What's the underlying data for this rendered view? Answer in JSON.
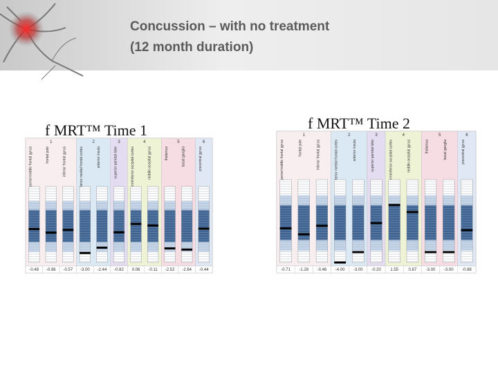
{
  "header": {
    "title_lines": [
      "Concussion – with no treatment",
      "(12 month duration)"
    ]
  },
  "scale": {
    "ylim": [
      -4,
      4
    ]
  },
  "panels": [
    {
      "heading": "f MRT™ Time 1",
      "groups": [
        {
          "label": "1",
          "regions": [
            {
              "name": "superior/middle frontal gyrus",
              "value": {
                "value": -0.48,
                "label": "-0.48"
              }
            },
            {
              "name": "frontal pole",
              "value": {
                "value": -0.86,
                "label": "-0.86"
              }
            },
            {
              "name": "inferior frontal gyrus",
              "value": {
                "value": -0.57,
                "label": "-0.57"
              }
            }
          ]
        },
        {
          "label": "2",
          "regions": [
            {
              "name": "posterior medial frontal cortex",
              "value": {
                "value": -3,
                "label": "-3.00"
              }
            },
            {
              "name": "anterior insula",
              "value": {
                "value": -2.44,
                "label": "-2.44"
              }
            }
          ]
        },
        {
          "label": "3",
          "regions": [
            {
              "name": "superior parietal lobe",
              "value": {
                "value": -0.82,
                "label": "-0.82"
              }
            }
          ]
        },
        {
          "label": "4",
          "regions": [
            {
              "name": "fusiform/inferior occipital cortex",
              "value": {
                "value": 0.06,
                "label": "0.06"
              }
            },
            {
              "name": "middle occipital gyrus",
              "value": {
                "value": -0.11,
                "label": "-0.11"
              }
            }
          ]
        },
        {
          "label": "5",
          "regions": [
            {
              "name": "thalamus",
              "value": {
                "value": -2.52,
                "label": "-2.52"
              }
            },
            {
              "name": "basal ganglia",
              "value": {
                "value": -2.64,
                "label": "-2.64"
              }
            }
          ]
        },
        {
          "label": "6",
          "regions": [
            {
              "name": "precentral gyrus",
              "value": {
                "value": -0.44,
                "label": "-0.44"
              }
            }
          ]
        }
      ]
    },
    {
      "heading": "f MRT™ Time 2",
      "groups": [
        {
          "label": "1",
          "regions": [
            {
              "name": "superior/middle frontal gyrus",
              "value": {
                "value": -0.71,
                "label": "-0.71"
              }
            },
            {
              "name": "frontal pole",
              "value": {
                "value": -1.28,
                "label": "-1.28"
              }
            },
            {
              "name": "inferior frontal gyrus",
              "value": {
                "value": -0.46,
                "label": "-0.46"
              }
            }
          ]
        },
        {
          "label": "2",
          "regions": [
            {
              "name": "posterior medial frontal cortex",
              "value": {
                "value": -4,
                "label": "-4.00"
              }
            },
            {
              "name": "anterior insula",
              "value": {
                "value": -3,
                "label": "-3.00"
              }
            }
          ]
        },
        {
          "label": "3",
          "regions": [
            {
              "name": "superior parietal lobe",
              "value": {
                "value": -0.2,
                "label": "-0.20"
              }
            }
          ]
        },
        {
          "label": "4",
          "regions": [
            {
              "name": "fusiform/inferior occipital cortex",
              "value": {
                "value": 1.55,
                "label": "1.55"
              }
            },
            {
              "name": "middle occipital gyrus",
              "value": {
                "value": 0.87,
                "label": "0.87"
              }
            }
          ]
        },
        {
          "label": "5",
          "regions": [
            {
              "name": "thalamus",
              "value": {
                "value": -3,
                "label": "-3.00"
              }
            },
            {
              "name": "basal ganglia",
              "value": {
                "value": -3,
                "label": "-3.00"
              }
            }
          ]
        },
        {
          "label": "6",
          "regions": [
            {
              "name": "precentral gyrus",
              "value": {
                "value": -0.88,
                "label": "-0.88"
              }
            }
          ]
        }
      ]
    }
  ]
}
